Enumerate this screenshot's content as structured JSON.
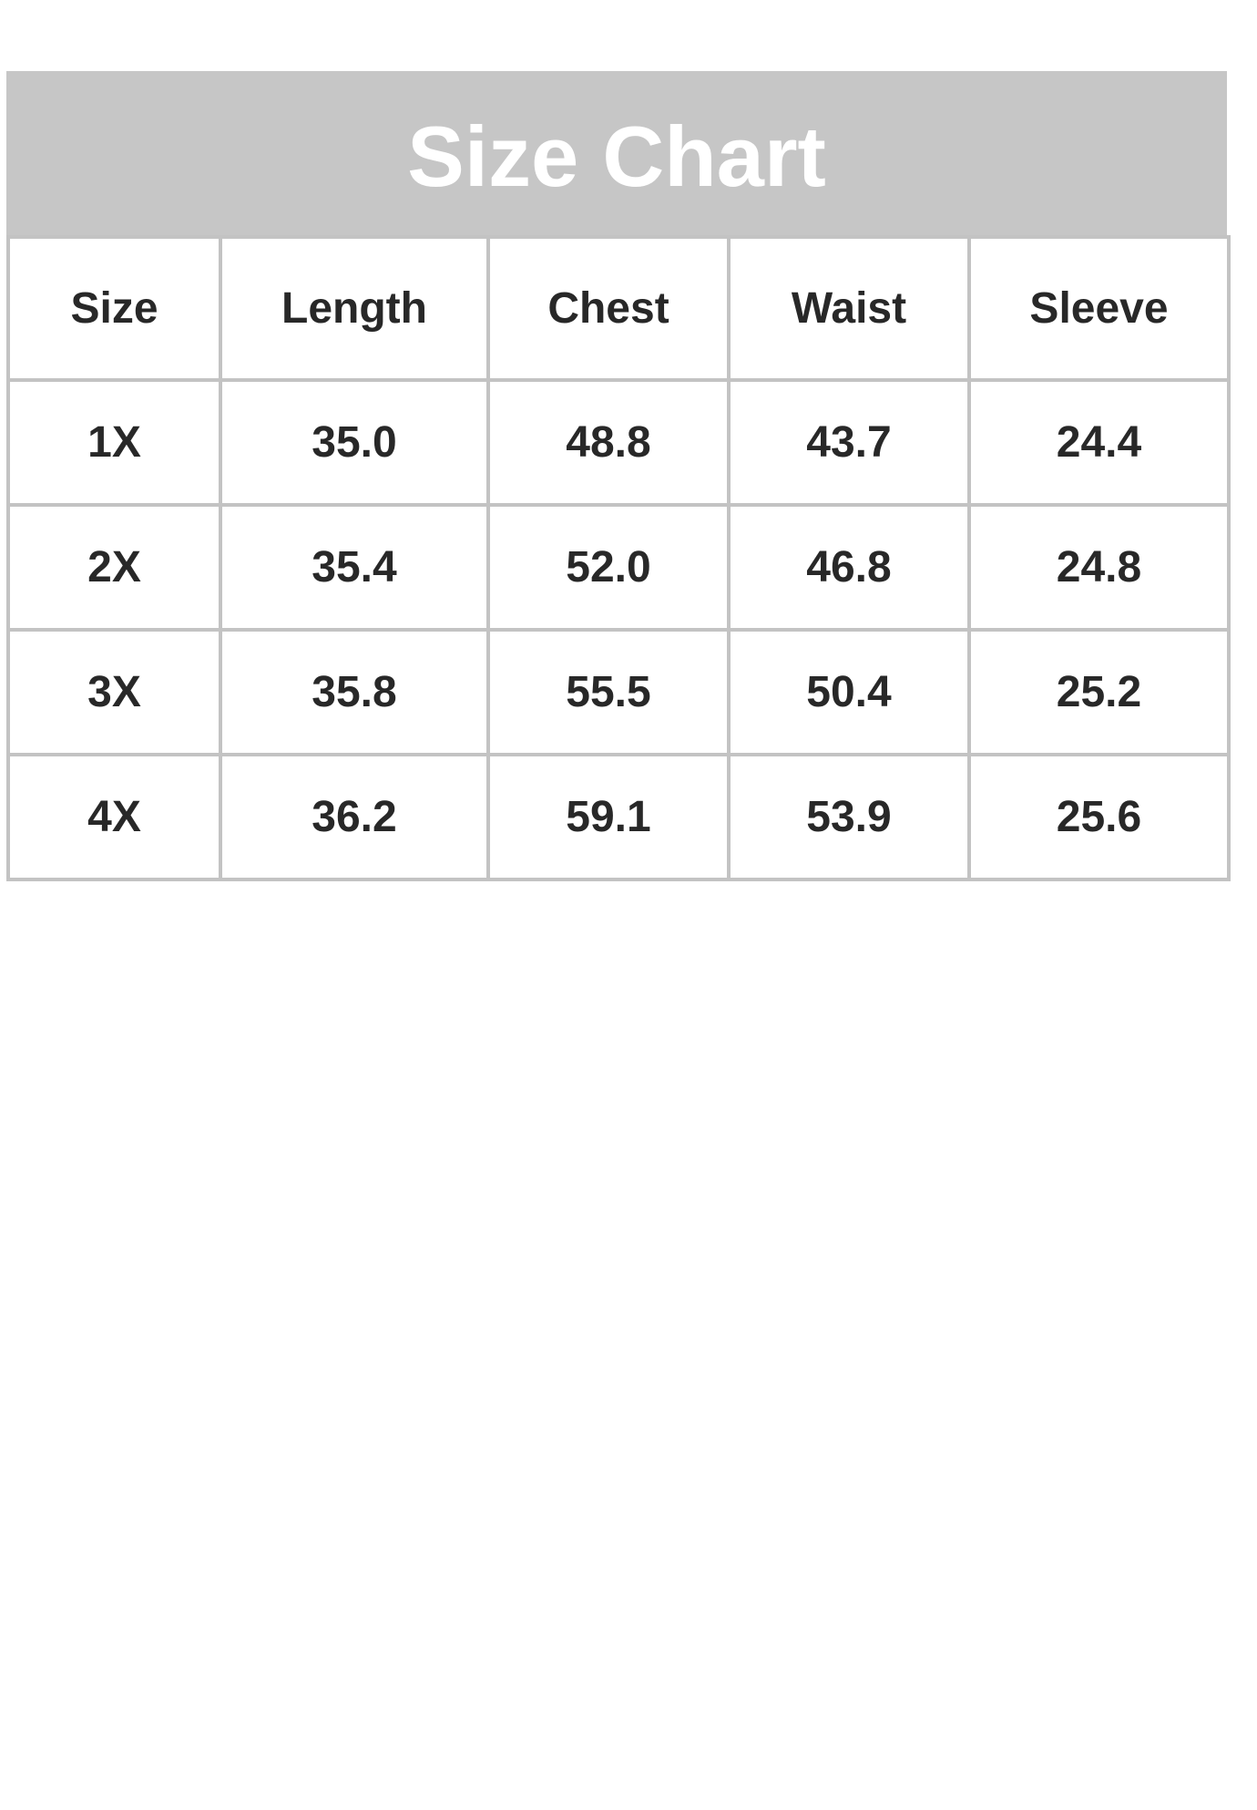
{
  "title": "Size Chart",
  "table": {
    "columns": [
      "Size",
      "Length",
      "Chest",
      "Waist",
      "Sleeve"
    ],
    "rows": [
      {
        "size": "1X",
        "values": [
          "35.0",
          "48.8",
          "43.7",
          "24.4"
        ]
      },
      {
        "size": "2X",
        "values": [
          "35.4",
          "52.0",
          "46.8",
          "24.8"
        ]
      },
      {
        "size": "3X",
        "values": [
          "35.8",
          "55.5",
          "50.4",
          "25.2"
        ]
      },
      {
        "size": "4X",
        "values": [
          "36.2",
          "59.1",
          "53.9",
          "25.6"
        ]
      }
    ]
  },
  "colors": {
    "banner_bg": "#c6c6c6",
    "border_color": "#c3c3c3",
    "text_color": "#282828",
    "title_color": "#ffffff"
  },
  "chart_data": {
    "type": "table",
    "title": "Size Chart",
    "columns": [
      "Size",
      "Length",
      "Chest",
      "Waist",
      "Sleeve"
    ],
    "rows": [
      [
        "1X",
        35.0,
        48.8,
        43.7,
        24.4
      ],
      [
        "2X",
        35.4,
        52.0,
        46.8,
        24.8
      ],
      [
        "3X",
        35.8,
        55.5,
        50.4,
        25.2
      ],
      [
        "4X",
        36.2,
        59.1,
        53.9,
        25.6
      ]
    ]
  }
}
